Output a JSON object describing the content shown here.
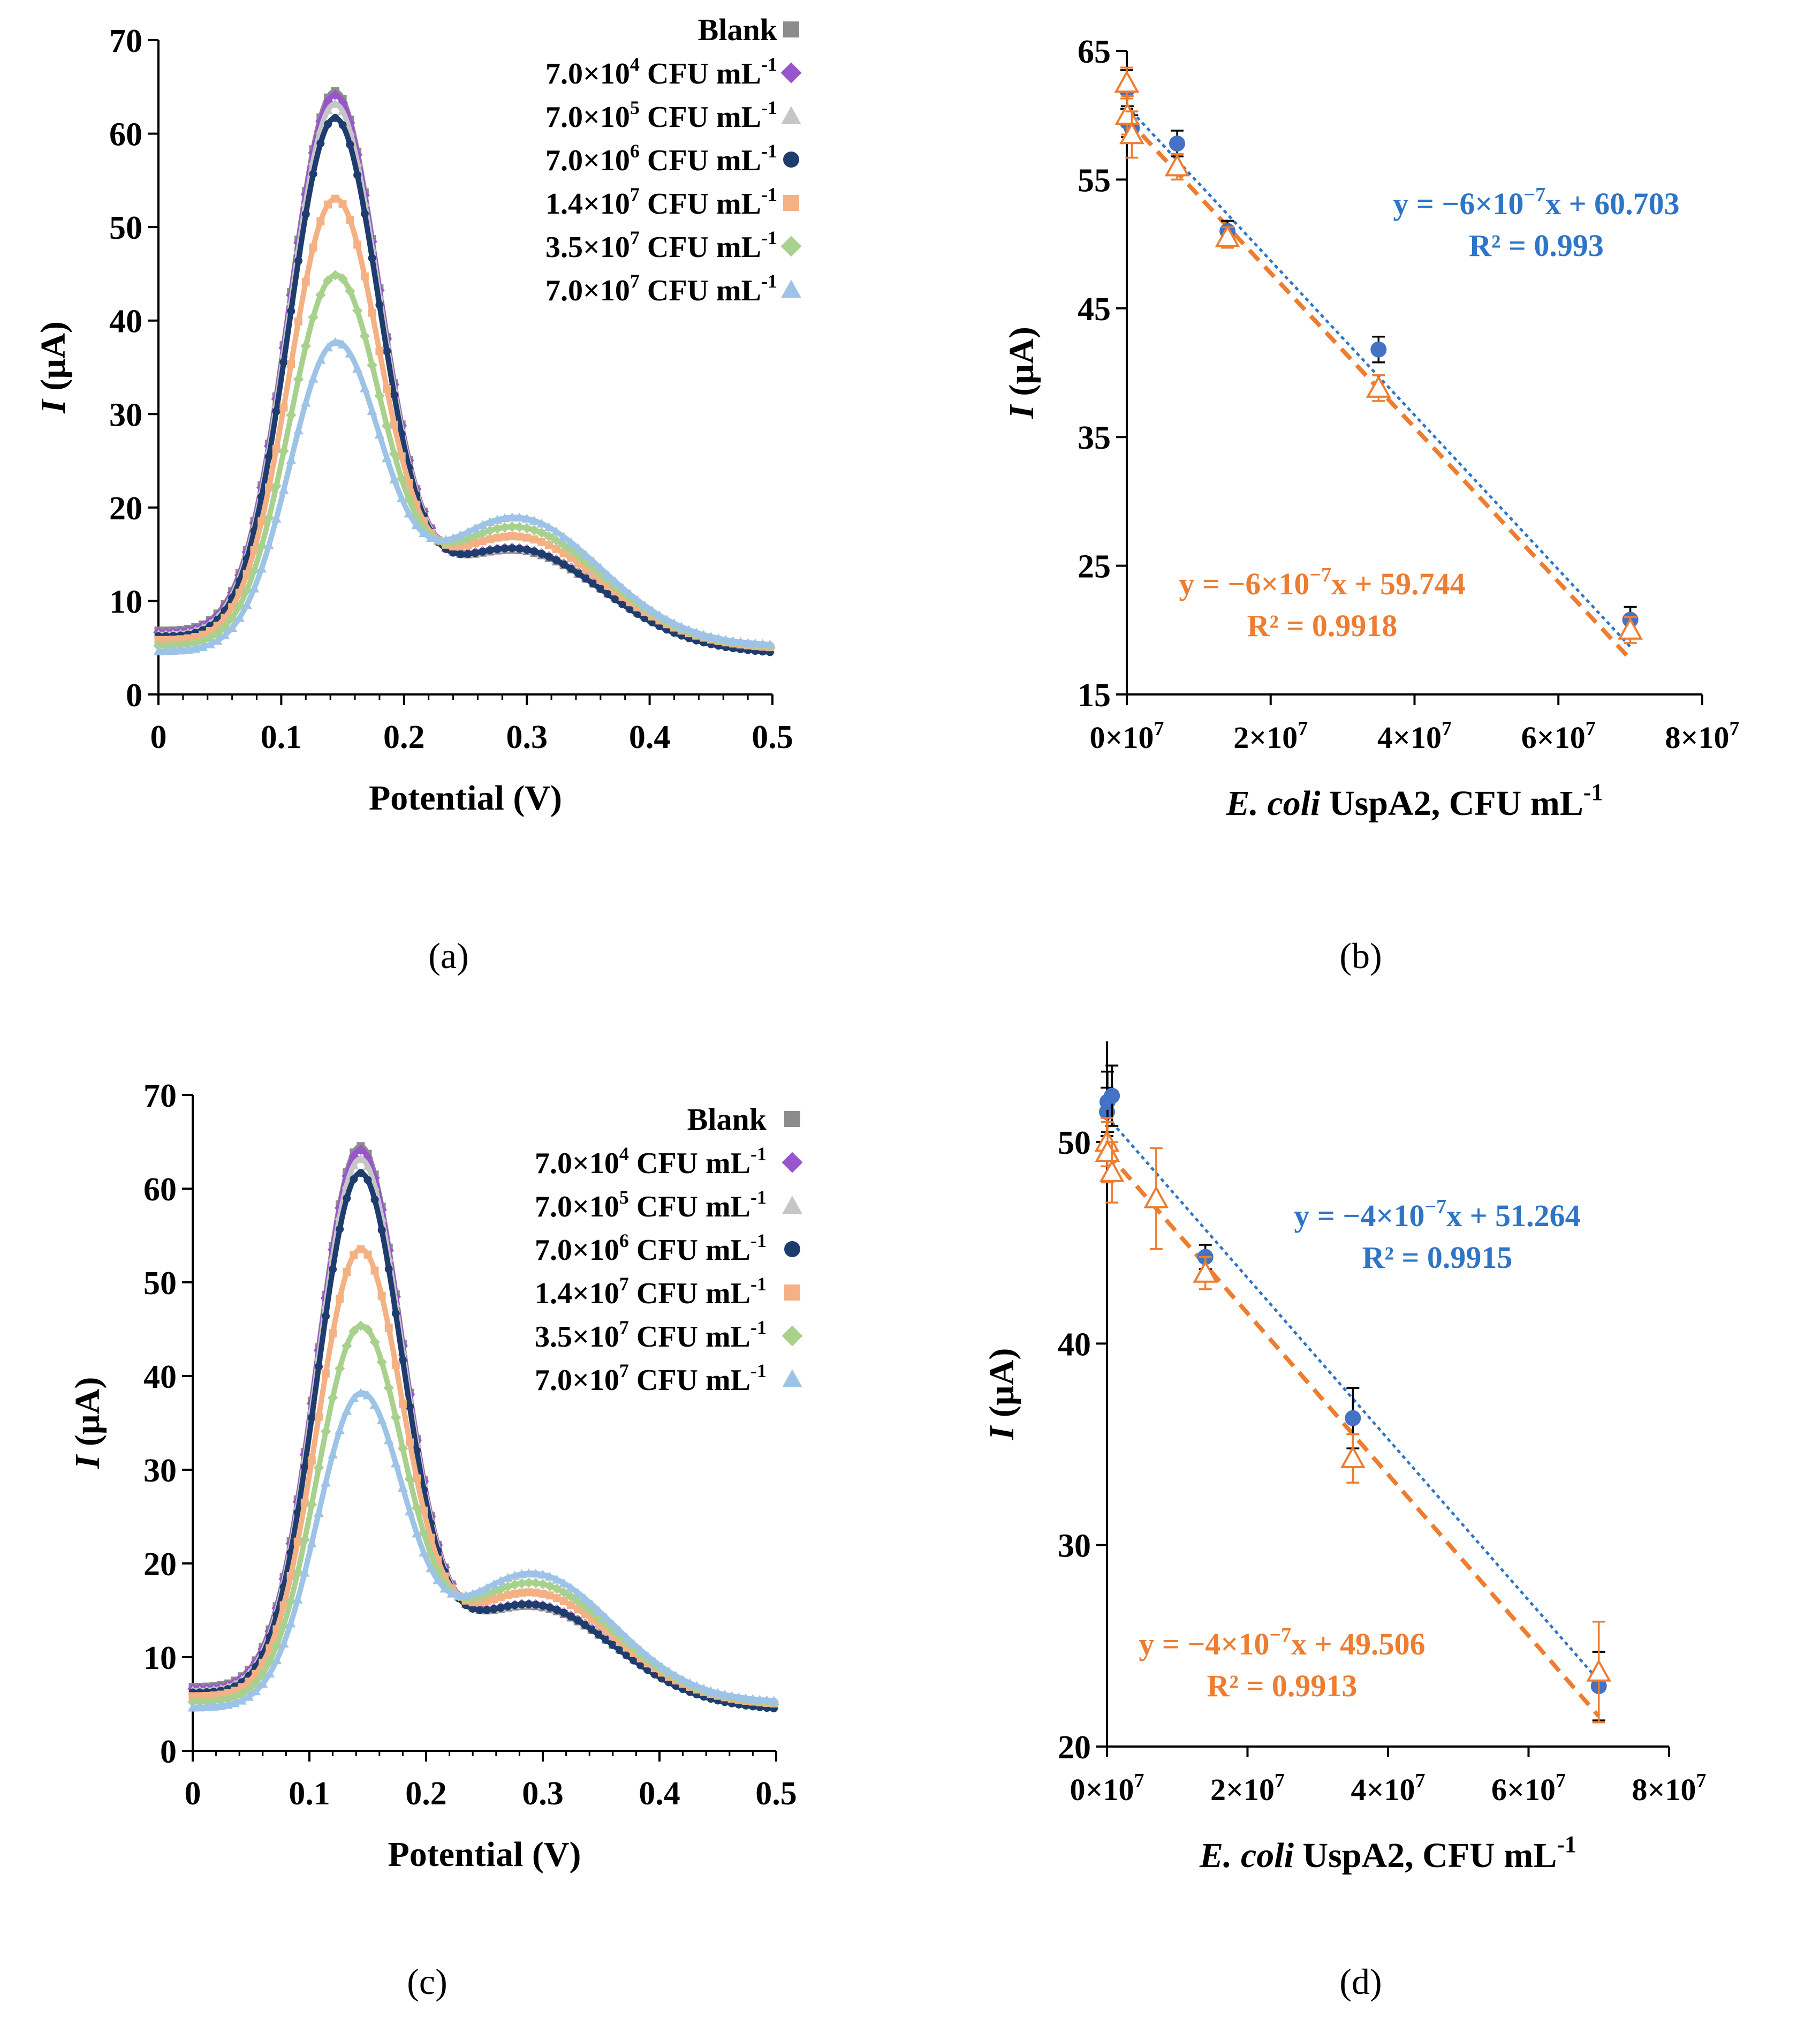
{
  "panel_labels": [
    "(a)",
    "(b)",
    "(c)",
    "(d)"
  ],
  "colors": {
    "blank": "#8c8c8c",
    "c1": "#9955cc",
    "c2": "#c6c6c6",
    "c3": "#1f3c6e",
    "c4": "#f4b183",
    "c5": "#a9d18e",
    "c6": "#9dc3e6",
    "fit_blue": "#2e75c6",
    "fit_orange": "#ed7d31",
    "marker_blue": "#4472c4",
    "axis": "#000000"
  },
  "legend": {
    "entries": [
      {
        "label": "Blank",
        "marker": "square",
        "color_key": "blank"
      },
      {
        "prefix": "7.0×10",
        "exp": "4",
        "unit": " CFU mL",
        "unit_exp": "-1",
        "marker": "diamond",
        "color_key": "c1"
      },
      {
        "prefix": "7.0×10",
        "exp": "5",
        "unit": " CFU mL",
        "unit_exp": "-1",
        "marker": "triangle",
        "color_key": "c2"
      },
      {
        "prefix": "7.0×10",
        "exp": "6",
        "unit": " CFU mL",
        "unit_exp": "-1",
        "marker": "circle",
        "color_key": "c3"
      },
      {
        "prefix": "1.4×10",
        "exp": "7",
        "unit": " CFU mL",
        "unit_exp": "-1",
        "marker": "square",
        "color_key": "c4"
      },
      {
        "prefix": "3.5×10",
        "exp": "7",
        "unit": " CFU mL",
        "unit_exp": "-1",
        "marker": "diamond",
        "color_key": "c5"
      },
      {
        "prefix": "7.0×10",
        "exp": "7",
        "unit": " CFU mL",
        "unit_exp": "-1",
        "marker": "triangle",
        "color_key": "c6"
      }
    ]
  },
  "chart_data": [
    {
      "id": "a",
      "type": "line",
      "xlabel": "Potential (V)",
      "ylabel_italic": "I",
      "ylabel_rest": " (µA)",
      "xlim": [
        0,
        0.5
      ],
      "ylim": [
        0,
        70
      ],
      "xticks": [
        0,
        0.1,
        0.2,
        0.3,
        0.4,
        0.5
      ],
      "xtick_labels": [
        "0",
        "0.1",
        "0.2",
        "0.3",
        "0.4",
        "0.5"
      ],
      "yticks": [
        0,
        10,
        20,
        30,
        40,
        50,
        60,
        70
      ],
      "series": [
        {
          "name": "Blank",
          "color_key": "blank",
          "marker": "square",
          "peak": 64,
          "base0": 6.8,
          "tail": 3.2,
          "hump": 0.0
        },
        {
          "name": "7.0×10^4 CFU mL^-1",
          "color_key": "c1",
          "marker": "diamond",
          "peak": 63.5,
          "base0": 6.6,
          "tail": 3.4,
          "hump": 0.2
        },
        {
          "name": "7.0×10^5 CFU mL^-1",
          "color_key": "c2",
          "marker": "triangle",
          "peak": 62.5,
          "base0": 6.4,
          "tail": 3.4,
          "hump": 0.3
        },
        {
          "name": "7.0×10^6 CFU mL^-1",
          "color_key": "c3",
          "marker": "circle",
          "peak": 61,
          "base0": 6.2,
          "tail": 3.0,
          "hump": 0.5
        },
        {
          "name": "1.4×10^7 CFU mL^-1",
          "color_key": "c4",
          "marker": "square",
          "peak": 52,
          "base0": 5.8,
          "tail": 3.8,
          "hump": 1.5
        },
        {
          "name": "3.5×10^7 CFU mL^-1",
          "color_key": "c5",
          "marker": "diamond",
          "peak": 43.5,
          "base0": 5.2,
          "tail": 4.2,
          "hump": 2.5
        },
        {
          "name": "7.0×10^7 CFU mL^-1",
          "color_key": "c6",
          "marker": "triangle",
          "peak": 36,
          "base0": 4.6,
          "tail": 4.6,
          "hump": 3.5
        }
      ]
    },
    {
      "id": "b",
      "type": "scatter",
      "xlabel_italic": "E. coli",
      "xlabel_rest": " UspA2, CFU mL",
      "xlabel_exp": "-1",
      "ylabel_italic": "I",
      "ylabel_rest": " (µA)",
      "xlim": [
        0,
        80000000
      ],
      "ylim": [
        15,
        65
      ],
      "xticks": [
        0,
        20000000,
        40000000,
        60000000,
        80000000
      ],
      "xtick_labels": [
        {
          "base": "0×10",
          "exp": "7"
        },
        {
          "base": "2×10",
          "exp": "7"
        },
        {
          "base": "4×10",
          "exp": "7"
        },
        {
          "base": "6×10",
          "exp": "7"
        },
        {
          "base": "8×10",
          "exp": "7"
        }
      ],
      "yticks": [
        15,
        25,
        35,
        45,
        55,
        65
      ],
      "series": [
        {
          "name": "blue",
          "color_key": "marker_blue",
          "marker": "circle",
          "x": [
            0,
            70000,
            700000,
            7000000,
            14000000,
            35000000,
            70000000
          ],
          "y": [
            62.0,
            59.5,
            59.0,
            57.8,
            51.0,
            41.8,
            20.8
          ],
          "err": [
            1.5,
            1.2,
            1.0,
            1.0,
            0.8,
            1.0,
            1.0
          ]
        },
        {
          "name": "orange",
          "color_key": "fit_orange",
          "marker": "open-triangle",
          "x": [
            0,
            70000,
            700000,
            7000000,
            14000000,
            35000000,
            70000000
          ],
          "y": [
            62.5,
            60.0,
            58.5,
            56.0,
            50.5,
            38.8,
            20.0
          ],
          "err": [
            1.2,
            1.5,
            1.8,
            1.0,
            0.8,
            1.0,
            1.0
          ]
        }
      ],
      "fits": [
        {
          "color_key": "fit_blue",
          "style": "dotted",
          "slope": -6e-07,
          "intercept": 60.703,
          "eq_prefix": "y = −6×10",
          "eq_exp": "−7",
          "eq_suffix": "x + 60.703",
          "r2": "R² = 0.993",
          "label_pos": "upper-right"
        },
        {
          "color_key": "fit_orange",
          "style": "dashed",
          "slope": -6e-07,
          "intercept": 59.744,
          "eq_prefix": "y = −6×10",
          "eq_exp": "−7",
          "eq_suffix": "x + 59.744",
          "r2": "R² = 0.9918",
          "label_pos": "lower-left"
        }
      ]
    },
    {
      "id": "c",
      "type": "line",
      "xlabel": "Potential (V)",
      "ylabel_italic": "I",
      "ylabel_rest": " (µA)",
      "xlim": [
        0,
        0.5
      ],
      "ylim": [
        0,
        70
      ],
      "xticks": [
        0,
        0.1,
        0.2,
        0.3,
        0.4,
        0.5
      ],
      "xtick_labels": [
        "0",
        "0.1",
        "0.2",
        "0.3",
        "0.4",
        "0.5"
      ],
      "yticks": [
        0,
        10,
        20,
        30,
        40,
        50,
        60,
        70
      ],
      "series": [
        {
          "name": "Blank",
          "color_key": "blank",
          "marker": "square",
          "peak": 64,
          "base0": 6.8,
          "tail": 3.2,
          "hump": 0.0
        },
        {
          "name": "7.0×10^4 CFU mL^-1",
          "color_key": "c1",
          "marker": "diamond",
          "peak": 63.5,
          "base0": 6.6,
          "tail": 3.4,
          "hump": 0.2
        },
        {
          "name": "7.0×10^5 CFU mL^-1",
          "color_key": "c2",
          "marker": "triangle",
          "peak": 62.5,
          "base0": 6.4,
          "tail": 3.4,
          "hump": 0.3
        },
        {
          "name": "7.0×10^6 CFU mL^-1",
          "color_key": "c3",
          "marker": "circle",
          "peak": 61,
          "base0": 6.2,
          "tail": 3.0,
          "hump": 0.5
        },
        {
          "name": "1.4×10^7 CFU mL^-1",
          "color_key": "c4",
          "marker": "square",
          "peak": 52.5,
          "base0": 5.8,
          "tail": 3.8,
          "hump": 1.5
        },
        {
          "name": "3.5×10^7 CFU mL^-1",
          "color_key": "c5",
          "marker": "diamond",
          "peak": 44,
          "base0": 5.2,
          "tail": 4.2,
          "hump": 2.5
        },
        {
          "name": "7.0×10^7 CFU mL^-1",
          "color_key": "c6",
          "marker": "triangle",
          "peak": 36.5,
          "base0": 4.6,
          "tail": 4.6,
          "hump": 3.5
        }
      ]
    },
    {
      "id": "d",
      "type": "scatter",
      "xlabel_italic": "E. coli",
      "xlabel_rest": " UspA2, CFU mL",
      "xlabel_exp": "-1",
      "ylabel_italic": "I",
      "ylabel_rest": " (µA)",
      "xlim": [
        0,
        80000000
      ],
      "ylim": [
        20,
        55
      ],
      "xticks": [
        0,
        20000000,
        40000000,
        60000000,
        80000000
      ],
      "xtick_labels": [
        {
          "base": "0×10",
          "exp": "7"
        },
        {
          "base": "2×10",
          "exp": "7"
        },
        {
          "base": "4×10",
          "exp": "7"
        },
        {
          "base": "6×10",
          "exp": "7"
        },
        {
          "base": "8×10",
          "exp": "7"
        }
      ],
      "yticks": [
        20,
        30,
        40,
        50
      ],
      "series": [
        {
          "name": "blue",
          "color_key": "marker_blue",
          "marker": "circle",
          "x": [
            0,
            70000,
            700000,
            14000000,
            35000000,
            70000000
          ],
          "y": [
            51.5,
            52.0,
            52.3,
            44.3,
            36.3,
            23.0
          ],
          "err": [
            1.2,
            1.5,
            1.5,
            0.6,
            1.5,
            1.7
          ]
        },
        {
          "name": "orange",
          "color_key": "fit_orange",
          "marker": "open-triangle",
          "x": [
            0,
            70000,
            700000,
            7000000,
            14000000,
            35000000,
            70000000
          ],
          "y": [
            50.0,
            49.5,
            48.5,
            47.2,
            43.5,
            34.3,
            23.7
          ],
          "err": [
            1.2,
            1.5,
            1.5,
            2.5,
            0.8,
            1.2,
            2.5
          ]
        }
      ],
      "fits": [
        {
          "color_key": "fit_blue",
          "style": "dotted",
          "slope": -4e-07,
          "intercept": 51.264,
          "eq_prefix": "y = −4×10",
          "eq_exp": "−7",
          "eq_suffix": "x + 51.264",
          "r2": "R² = 0.9915",
          "label_pos": "upper-right"
        },
        {
          "color_key": "fit_orange",
          "style": "dashed",
          "slope": -4e-07,
          "intercept": 49.506,
          "eq_prefix": "y = −4×10",
          "eq_exp": "−7",
          "eq_suffix": "x + 49.506",
          "r2": "R² = 0.9913",
          "label_pos": "lower-left"
        }
      ]
    }
  ]
}
